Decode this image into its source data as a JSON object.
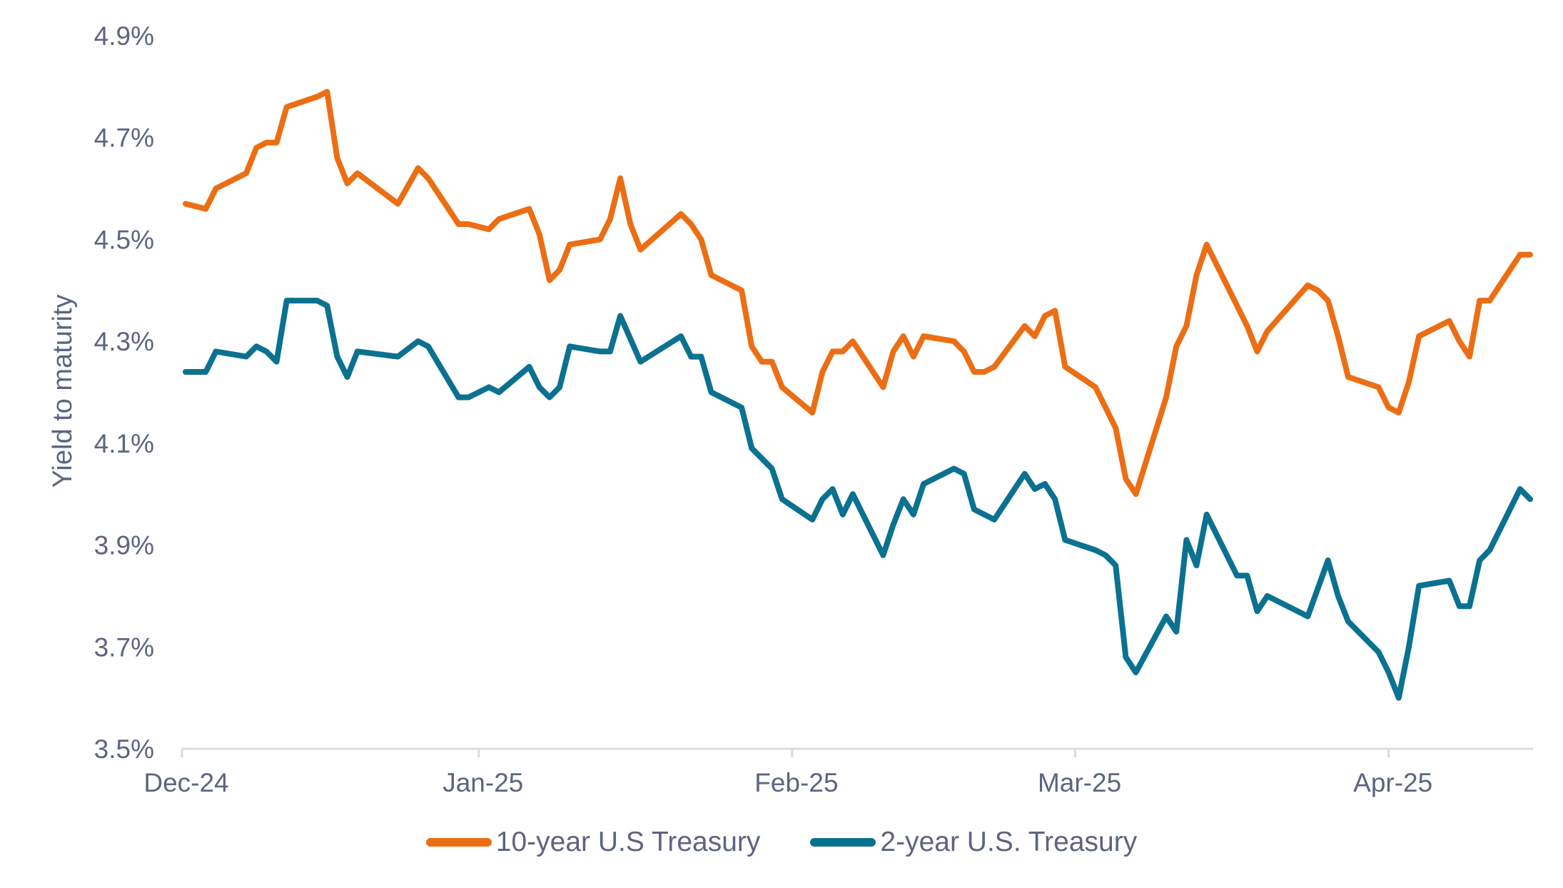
{
  "chart_data": {
    "type": "line",
    "ylabel": "Yield to maturity",
    "xlabel": "",
    "ylim": [
      3.5,
      4.9
    ],
    "yticks": [
      "3.5%",
      "3.7%",
      "3.9%",
      "4.1%",
      "4.3%",
      "4.5%",
      "4.7%",
      "4.9%"
    ],
    "ytick_values": [
      3.5,
      3.7,
      3.9,
      4.1,
      4.3,
      4.5,
      4.7,
      4.9
    ],
    "xlim": [
      "2024-12-03",
      "2025-04-15"
    ],
    "xticks": [
      {
        "label": "Dec-24",
        "date": "2024-12-01"
      },
      {
        "label": "Jan-25",
        "date": "2025-01-01"
      },
      {
        "label": "Feb-25",
        "date": "2025-02-01"
      },
      {
        "label": "Mar-25",
        "date": "2025-03-01"
      },
      {
        "label": "Apr-25",
        "date": "2025-04-01"
      }
    ],
    "grid": false,
    "legend_position": "bottom",
    "series": [
      {
        "name": "10-year U.S Treasury",
        "color": "#ec6e14",
        "points": [
          [
            "2024-12-03",
            4.57
          ],
          [
            "2024-12-05",
            4.56
          ],
          [
            "2024-12-06",
            4.6
          ],
          [
            "2024-12-09",
            4.63
          ],
          [
            "2024-12-10",
            4.68
          ],
          [
            "2024-12-11",
            4.69
          ],
          [
            "2024-12-12",
            4.69
          ],
          [
            "2024-12-13",
            4.76
          ],
          [
            "2024-12-16",
            4.78
          ],
          [
            "2024-12-17",
            4.79
          ],
          [
            "2024-12-18",
            4.66
          ],
          [
            "2024-12-19",
            4.61
          ],
          [
            "2024-12-20",
            4.63
          ],
          [
            "2024-12-24",
            4.57
          ],
          [
            "2024-12-26",
            4.64
          ],
          [
            "2024-12-27",
            4.62
          ],
          [
            "2024-12-30",
            4.53
          ],
          [
            "2024-12-31",
            4.53
          ],
          [
            "2025-01-02",
            4.52
          ],
          [
            "2025-01-03",
            4.54
          ],
          [
            "2025-01-06",
            4.56
          ],
          [
            "2025-01-07",
            4.51
          ],
          [
            "2025-01-08",
            4.42
          ],
          [
            "2025-01-09",
            4.44
          ],
          [
            "2025-01-10",
            4.49
          ],
          [
            "2025-01-13",
            4.5
          ],
          [
            "2025-01-14",
            4.54
          ],
          [
            "2025-01-15",
            4.62
          ],
          [
            "2025-01-16",
            4.53
          ],
          [
            "2025-01-17",
            4.48
          ],
          [
            "2025-01-21",
            4.55
          ],
          [
            "2025-01-22",
            4.53
          ],
          [
            "2025-01-23",
            4.5
          ],
          [
            "2025-01-24",
            4.43
          ],
          [
            "2025-01-27",
            4.4
          ],
          [
            "2025-01-28",
            4.29
          ],
          [
            "2025-01-29",
            4.26
          ],
          [
            "2025-01-30",
            4.26
          ],
          [
            "2025-01-31",
            4.21
          ],
          [
            "2025-02-03",
            4.16
          ],
          [
            "2025-02-04",
            4.24
          ],
          [
            "2025-02-05",
            4.28
          ],
          [
            "2025-02-06",
            4.28
          ],
          [
            "2025-02-07",
            4.3
          ],
          [
            "2025-02-10",
            4.21
          ],
          [
            "2025-02-11",
            4.28
          ],
          [
            "2025-02-12",
            4.31
          ],
          [
            "2025-02-13",
            4.27
          ],
          [
            "2025-02-14",
            4.31
          ],
          [
            "2025-02-17",
            4.3
          ],
          [
            "2025-02-18",
            4.28
          ],
          [
            "2025-02-19",
            4.24
          ],
          [
            "2025-02-20",
            4.24
          ],
          [
            "2025-02-21",
            4.25
          ],
          [
            "2025-02-24",
            4.33
          ],
          [
            "2025-02-25",
            4.31
          ],
          [
            "2025-02-26",
            4.35
          ],
          [
            "2025-02-27",
            4.36
          ],
          [
            "2025-02-28",
            4.25
          ],
          [
            "2025-03-03",
            4.21
          ],
          [
            "2025-03-05",
            4.13
          ],
          [
            "2025-03-06",
            4.03
          ],
          [
            "2025-03-07",
            4.0
          ],
          [
            "2025-03-10",
            4.19
          ],
          [
            "2025-03-11",
            4.29
          ],
          [
            "2025-03-12",
            4.33
          ],
          [
            "2025-03-13",
            4.43
          ],
          [
            "2025-03-14",
            4.49
          ],
          [
            "2025-03-18",
            4.33
          ],
          [
            "2025-03-19",
            4.28
          ],
          [
            "2025-03-20",
            4.32
          ],
          [
            "2025-03-24",
            4.41
          ],
          [
            "2025-03-25",
            4.4
          ],
          [
            "2025-03-26",
            4.38
          ],
          [
            "2025-03-27",
            4.31
          ],
          [
            "2025-03-28",
            4.23
          ],
          [
            "2025-03-31",
            4.21
          ],
          [
            "2025-04-01",
            4.17
          ],
          [
            "2025-04-02",
            4.16
          ],
          [
            "2025-04-03",
            4.22
          ],
          [
            "2025-04-04",
            4.31
          ],
          [
            "2025-04-07",
            4.34
          ],
          [
            "2025-04-08",
            4.3
          ],
          [
            "2025-04-09",
            4.27
          ],
          [
            "2025-04-10",
            4.38
          ],
          [
            "2025-04-11",
            4.38
          ],
          [
            "2025-04-14",
            4.47
          ],
          [
            "2025-04-15",
            4.47
          ]
        ]
      },
      {
        "name": "2-year U.S. Treasury",
        "color": "#0b7190",
        "points": [
          [
            "2024-12-03",
            4.24
          ],
          [
            "2024-12-05",
            4.24
          ],
          [
            "2024-12-06",
            4.28
          ],
          [
            "2024-12-09",
            4.27
          ],
          [
            "2024-12-10",
            4.29
          ],
          [
            "2024-12-11",
            4.28
          ],
          [
            "2024-12-12",
            4.26
          ],
          [
            "2024-12-13",
            4.38
          ],
          [
            "2024-12-16",
            4.38
          ],
          [
            "2024-12-17",
            4.37
          ],
          [
            "2024-12-18",
            4.27
          ],
          [
            "2024-12-19",
            4.23
          ],
          [
            "2024-12-20",
            4.28
          ],
          [
            "2024-12-24",
            4.27
          ],
          [
            "2024-12-26",
            4.3
          ],
          [
            "2024-12-27",
            4.29
          ],
          [
            "2024-12-30",
            4.19
          ],
          [
            "2024-12-31",
            4.19
          ],
          [
            "2025-01-02",
            4.21
          ],
          [
            "2025-01-03",
            4.2
          ],
          [
            "2025-01-06",
            4.25
          ],
          [
            "2025-01-07",
            4.21
          ],
          [
            "2025-01-08",
            4.19
          ],
          [
            "2025-01-09",
            4.21
          ],
          [
            "2025-01-10",
            4.29
          ],
          [
            "2025-01-13",
            4.28
          ],
          [
            "2025-01-14",
            4.28
          ],
          [
            "2025-01-15",
            4.35
          ],
          [
            "2025-01-17",
            4.26
          ],
          [
            "2025-01-21",
            4.31
          ],
          [
            "2025-01-22",
            4.27
          ],
          [
            "2025-01-23",
            4.27
          ],
          [
            "2025-01-24",
            4.2
          ],
          [
            "2025-01-27",
            4.17
          ],
          [
            "2025-01-28",
            4.09
          ],
          [
            "2025-01-30",
            4.05
          ],
          [
            "2025-01-31",
            3.99
          ],
          [
            "2025-02-03",
            3.95
          ],
          [
            "2025-02-04",
            3.99
          ],
          [
            "2025-02-05",
            4.01
          ],
          [
            "2025-02-06",
            3.96
          ],
          [
            "2025-02-07",
            4.0
          ],
          [
            "2025-02-10",
            3.88
          ],
          [
            "2025-02-11",
            3.94
          ],
          [
            "2025-02-12",
            3.99
          ],
          [
            "2025-02-13",
            3.96
          ],
          [
            "2025-02-14",
            4.02
          ],
          [
            "2025-02-17",
            4.05
          ],
          [
            "2025-02-18",
            4.04
          ],
          [
            "2025-02-19",
            3.97
          ],
          [
            "2025-02-20",
            3.96
          ],
          [
            "2025-02-21",
            3.95
          ],
          [
            "2025-02-24",
            4.04
          ],
          [
            "2025-02-25",
            4.01
          ],
          [
            "2025-02-26",
            4.02
          ],
          [
            "2025-02-27",
            3.99
          ],
          [
            "2025-02-28",
            3.91
          ],
          [
            "2025-03-03",
            3.89
          ],
          [
            "2025-03-04",
            3.88
          ],
          [
            "2025-03-05",
            3.86
          ],
          [
            "2025-03-06",
            3.68
          ],
          [
            "2025-03-07",
            3.65
          ],
          [
            "2025-03-10",
            3.76
          ],
          [
            "2025-03-11",
            3.73
          ],
          [
            "2025-03-12",
            3.91
          ],
          [
            "2025-03-13",
            3.86
          ],
          [
            "2025-03-14",
            3.96
          ],
          [
            "2025-03-17",
            3.84
          ],
          [
            "2025-03-18",
            3.84
          ],
          [
            "2025-03-19",
            3.77
          ],
          [
            "2025-03-20",
            3.8
          ],
          [
            "2025-03-24",
            3.76
          ],
          [
            "2025-03-26",
            3.87
          ],
          [
            "2025-03-27",
            3.8
          ],
          [
            "2025-03-28",
            3.75
          ],
          [
            "2025-03-31",
            3.69
          ],
          [
            "2025-04-01",
            3.65
          ],
          [
            "2025-04-02",
            3.6
          ],
          [
            "2025-04-03",
            3.7
          ],
          [
            "2025-04-04",
            3.82
          ],
          [
            "2025-04-07",
            3.83
          ],
          [
            "2025-04-08",
            3.78
          ],
          [
            "2025-04-09",
            3.78
          ],
          [
            "2025-04-10",
            3.87
          ],
          [
            "2025-04-11",
            3.89
          ],
          [
            "2025-04-14",
            4.01
          ],
          [
            "2025-04-15",
            3.99
          ]
        ]
      }
    ]
  },
  "legend": {
    "items": [
      {
        "label": "10-year U.S Treasury",
        "color": "#ec6e14"
      },
      {
        "label": "2-year U.S. Treasury",
        "color": "#0b7190"
      }
    ]
  }
}
